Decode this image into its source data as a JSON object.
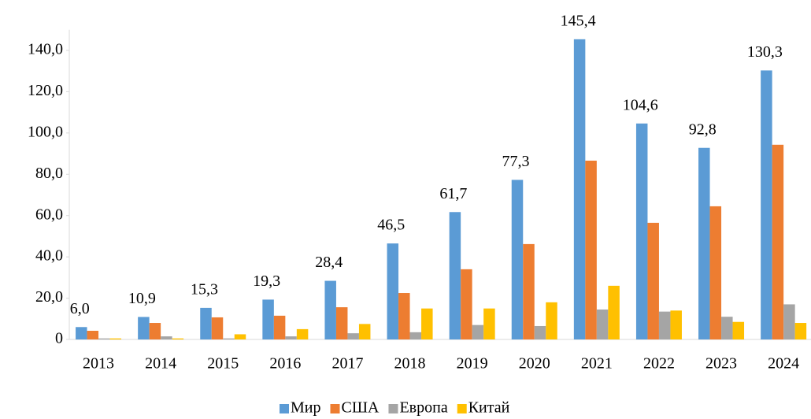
{
  "chart_data": {
    "type": "bar",
    "categories": [
      "2013",
      "2014",
      "2015",
      "2016",
      "2017",
      "2018",
      "2019",
      "2020",
      "2021",
      "2022",
      "2023",
      "2024"
    ],
    "series": [
      {
        "name": "Мир",
        "color": "#5b9bd5",
        "values": [
          6.0,
          10.9,
          15.3,
          19.3,
          28.4,
          46.5,
          61.7,
          77.3,
          145.4,
          104.6,
          92.8,
          130.3
        ],
        "value_labels": [
          "6,0",
          "10,9",
          "15,3",
          "19,3",
          "28,4",
          "46,5",
          "61,7",
          "77,3",
          "145,4",
          "104,6",
          "92,8",
          "130,3"
        ]
      },
      {
        "name": "США",
        "color": "#ed7d31",
        "values": [
          4.2,
          8.0,
          10.7,
          11.5,
          15.6,
          22.5,
          34.0,
          46.2,
          86.6,
          56.5,
          64.5,
          94.3
        ]
      },
      {
        "name": "Европа",
        "color": "#a5a5a5",
        "values": [
          0.5,
          1.5,
          0.5,
          1.5,
          3.0,
          3.5,
          7.0,
          6.5,
          14.5,
          13.5,
          11.0,
          17.0
        ]
      },
      {
        "name": "Китай",
        "color": "#ffc000",
        "values": [
          0.5,
          0.5,
          2.5,
          5.0,
          7.5,
          15.0,
          15.0,
          18.0,
          26.0,
          14.0,
          8.5,
          8.0
        ]
      }
    ],
    "ylim": [
      0,
      150
    ],
    "yticks": [
      0,
      {
        "value": 20,
        "label": "20,0"
      },
      {
        "value": 40,
        "label": "40,0"
      },
      {
        "value": 60,
        "label": "60,0"
      },
      {
        "value": 80,
        "label": "80,0"
      },
      {
        "value": 100,
        "label": "100,0"
      },
      {
        "value": 120,
        "label": "120,0"
      },
      {
        "value": 140,
        "label": "140,0"
      }
    ],
    "grid": false,
    "legend": "bottom"
  }
}
